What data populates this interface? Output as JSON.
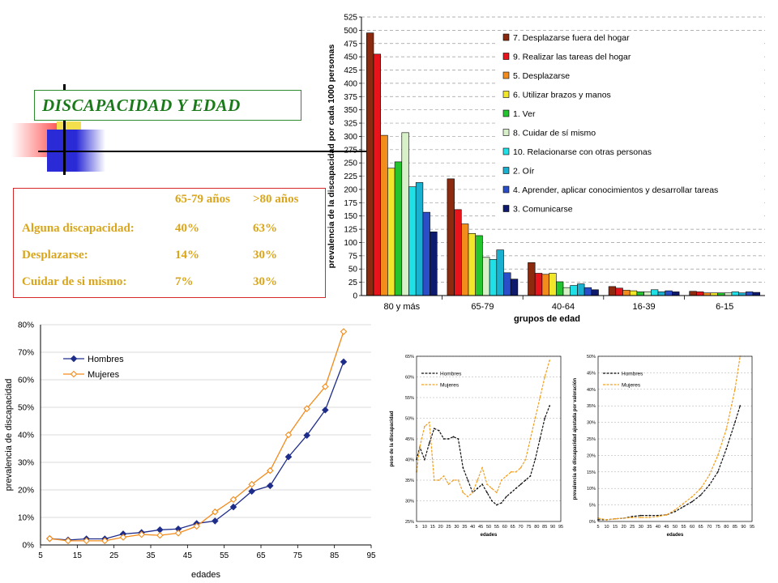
{
  "slide": {
    "title": "DISCAPACIDAD Y EDAD",
    "stats_table": {
      "headers": [
        "",
        "65-79 años",
        ">80 años"
      ],
      "rows": [
        [
          "Alguna discapacidad:",
          "40%",
          "63%"
        ],
        [
          "Desplazarse:",
          "14%",
          "30%"
        ],
        [
          "Cuidar de si mismo:",
          "7%",
          "30%"
        ]
      ],
      "text_color": "#d9a51b"
    }
  },
  "chart_data": [
    {
      "type": "bar",
      "xlabel": "grupos de edad",
      "ylabel": "prevalencia de la discapacidad por cada 1000 personas",
      "ylim": [
        0,
        525
      ],
      "yticks": [
        0,
        25,
        50,
        75,
        100,
        125,
        150,
        175,
        200,
        225,
        250,
        275,
        300,
        325,
        350,
        375,
        400,
        425,
        450,
        475,
        500,
        525
      ],
      "grid": true,
      "legend_position": "top-right",
      "categories": [
        "80 y más",
        "65-79",
        "40-64",
        "16-39",
        "6-15"
      ],
      "series": [
        {
          "name": "7. Desplazarse fuera del hogar",
          "color": "#8b2a0e",
          "values": [
            495,
            220,
            62,
            17,
            8
          ]
        },
        {
          "name": "9. Realizar las tareas del hogar",
          "color": "#e8141c",
          "values": [
            455,
            162,
            42,
            14,
            7
          ]
        },
        {
          "name": "5. Desplazarse",
          "color": "#f28c1c",
          "values": [
            302,
            135,
            40,
            10,
            5
          ]
        },
        {
          "name": "6. Utilizar brazos y manos",
          "color": "#f2e62a",
          "values": [
            240,
            117,
            42,
            9,
            5
          ]
        },
        {
          "name": "1. Ver",
          "color": "#23c42e",
          "values": [
            252,
            113,
            26,
            7,
            5
          ]
        },
        {
          "name": "8. Cuidar de sí mismo",
          "color": "#d8f0c8",
          "values": [
            307,
            72,
            15,
            7,
            5
          ]
        },
        {
          "name": "10. Relacionarse con otras personas",
          "color": "#1fe0e6",
          "values": [
            205,
            68,
            19,
            11,
            7
          ]
        },
        {
          "name": "2. Oír",
          "color": "#1ab0d0",
          "values": [
            213,
            86,
            22,
            7,
            5
          ]
        },
        {
          "name": "4. Aprender, aplicar conocimientos y desarrollar tareas",
          "color": "#2a4ec8",
          "values": [
            157,
            43,
            15,
            9,
            7
          ]
        },
        {
          "name": "3. Comunicarse",
          "color": "#0e1a6e",
          "values": [
            120,
            31,
            11,
            7,
            6
          ]
        }
      ]
    },
    {
      "type": "line",
      "xlabel": "edades",
      "ylabel": "prevalencia de discapacidad",
      "xlim": [
        5,
        95
      ],
      "xticks": [
        5,
        15,
        25,
        35,
        45,
        55,
        65,
        75,
        85,
        95
      ],
      "ylim": [
        0,
        80
      ],
      "yticks": [
        "0%",
        "10%",
        "20%",
        "30%",
        "40%",
        "50%",
        "60%",
        "70%",
        "80%"
      ],
      "grid": true,
      "legend_position": "top-left",
      "series": [
        {
          "name": "Hombres",
          "color": "#1f2d8a",
          "x": [
            7.5,
            12.5,
            17.5,
            22.5,
            27.5,
            32.5,
            37.5,
            42.5,
            47.5,
            52.5,
            57.5,
            62.5,
            67.5,
            72.5,
            77.5,
            82.5,
            87.5
          ],
          "y": [
            2.3,
            1.8,
            2.2,
            2.2,
            4,
            4.5,
            5.5,
            5.8,
            7.8,
            8.7,
            13.8,
            19.5,
            21.5,
            32,
            39.8,
            49,
            66.5
          ]
        },
        {
          "name": "Mujeres",
          "color": "#f28c1c",
          "x": [
            7.5,
            12.5,
            17.5,
            22.5,
            27.5,
            32.5,
            37.5,
            42.5,
            47.5,
            52.5,
            57.5,
            62.5,
            67.5,
            72.5,
            77.5,
            82.5,
            87.5
          ],
          "y": [
            2.3,
            1.5,
            1.5,
            1.5,
            2.8,
            3.8,
            3.5,
            4.3,
            6.8,
            12,
            16.5,
            22,
            27,
            40,
            49.5,
            57.5,
            77.5
          ]
        }
      ]
    },
    {
      "type": "line",
      "xlabel": "edades",
      "ylabel": "peso de la discapacidad",
      "xlim": [
        5,
        95
      ],
      "xticks": [
        5,
        10,
        15,
        20,
        25,
        30,
        35,
        40,
        45,
        50,
        55,
        60,
        65,
        70,
        75,
        80,
        85,
        90,
        95
      ],
      "ylim": [
        25,
        65
      ],
      "yticks": [
        "25%",
        "30%",
        "35%",
        "40%",
        "45%",
        "50%",
        "55%",
        "60%",
        "65%"
      ],
      "grid": true,
      "legend_position": "top-left",
      "series": [
        {
          "name": "Hombres",
          "color": "#111111",
          "x": [
            5,
            7,
            10,
            13,
            16,
            19,
            22,
            25,
            28,
            31,
            34,
            37,
            40,
            43,
            46,
            49,
            52,
            55,
            58,
            61,
            64,
            67,
            70,
            73,
            76,
            79,
            82,
            85,
            88
          ],
          "y": [
            40,
            43,
            40,
            44,
            47.5,
            47,
            45,
            45,
            45.5,
            45,
            38,
            35,
            32,
            33,
            34,
            32,
            30,
            29,
            29.5,
            31,
            32,
            33,
            34,
            35,
            36,
            40,
            45,
            50,
            53
          ]
        },
        {
          "name": "Mujeres",
          "color": "#f2a020",
          "x": [
            5,
            7,
            10,
            13,
            16,
            19,
            22,
            25,
            28,
            31,
            34,
            37,
            40,
            43,
            46,
            49,
            52,
            55,
            58,
            61,
            64,
            67,
            70,
            73,
            76,
            79,
            82,
            85,
            88
          ],
          "y": [
            37,
            43,
            48,
            49,
            35,
            35,
            36,
            34,
            35,
            35,
            32,
            31,
            32,
            35,
            38,
            34,
            33,
            32,
            35,
            36,
            37,
            37,
            38,
            40,
            45,
            50,
            55,
            60,
            64
          ]
        }
      ]
    },
    {
      "type": "line",
      "xlabel": "edades",
      "ylabel": "prevalencia de discapacidad ajustada por valoración",
      "xlim": [
        5,
        95
      ],
      "xticks": [
        5,
        10,
        15,
        20,
        25,
        30,
        35,
        40,
        45,
        50,
        55,
        60,
        65,
        70,
        75,
        80,
        85,
        90,
        95
      ],
      "ylim": [
        0,
        50
      ],
      "yticks": [
        "0%",
        "5%",
        "10%",
        "15%",
        "20%",
        "25%",
        "30%",
        "35%",
        "40%",
        "45%",
        "50%"
      ],
      "grid": true,
      "legend_position": "top-left",
      "series": [
        {
          "name": "Hombres",
          "color": "#111111",
          "x": [
            5,
            10,
            15,
            20,
            25,
            30,
            35,
            40,
            45,
            50,
            55,
            60,
            65,
            70,
            75,
            80,
            85,
            88
          ],
          "y": [
            0.5,
            0.5,
            0.8,
            1,
            1.5,
            1.8,
            1.8,
            1.8,
            2,
            3,
            4.5,
            6,
            8,
            11,
            15,
            22,
            30,
            35
          ]
        },
        {
          "name": "Mujeres",
          "color": "#f2a020",
          "x": [
            5,
            10,
            15,
            20,
            25,
            30,
            35,
            40,
            45,
            50,
            55,
            60,
            65,
            70,
            75,
            80,
            85,
            88
          ],
          "y": [
            1,
            0.5,
            0.8,
            1,
            1.2,
            1.2,
            1.2,
            1.5,
            2,
            3.5,
            5.5,
            7.5,
            10,
            14,
            20,
            28,
            40,
            50
          ]
        }
      ]
    }
  ]
}
